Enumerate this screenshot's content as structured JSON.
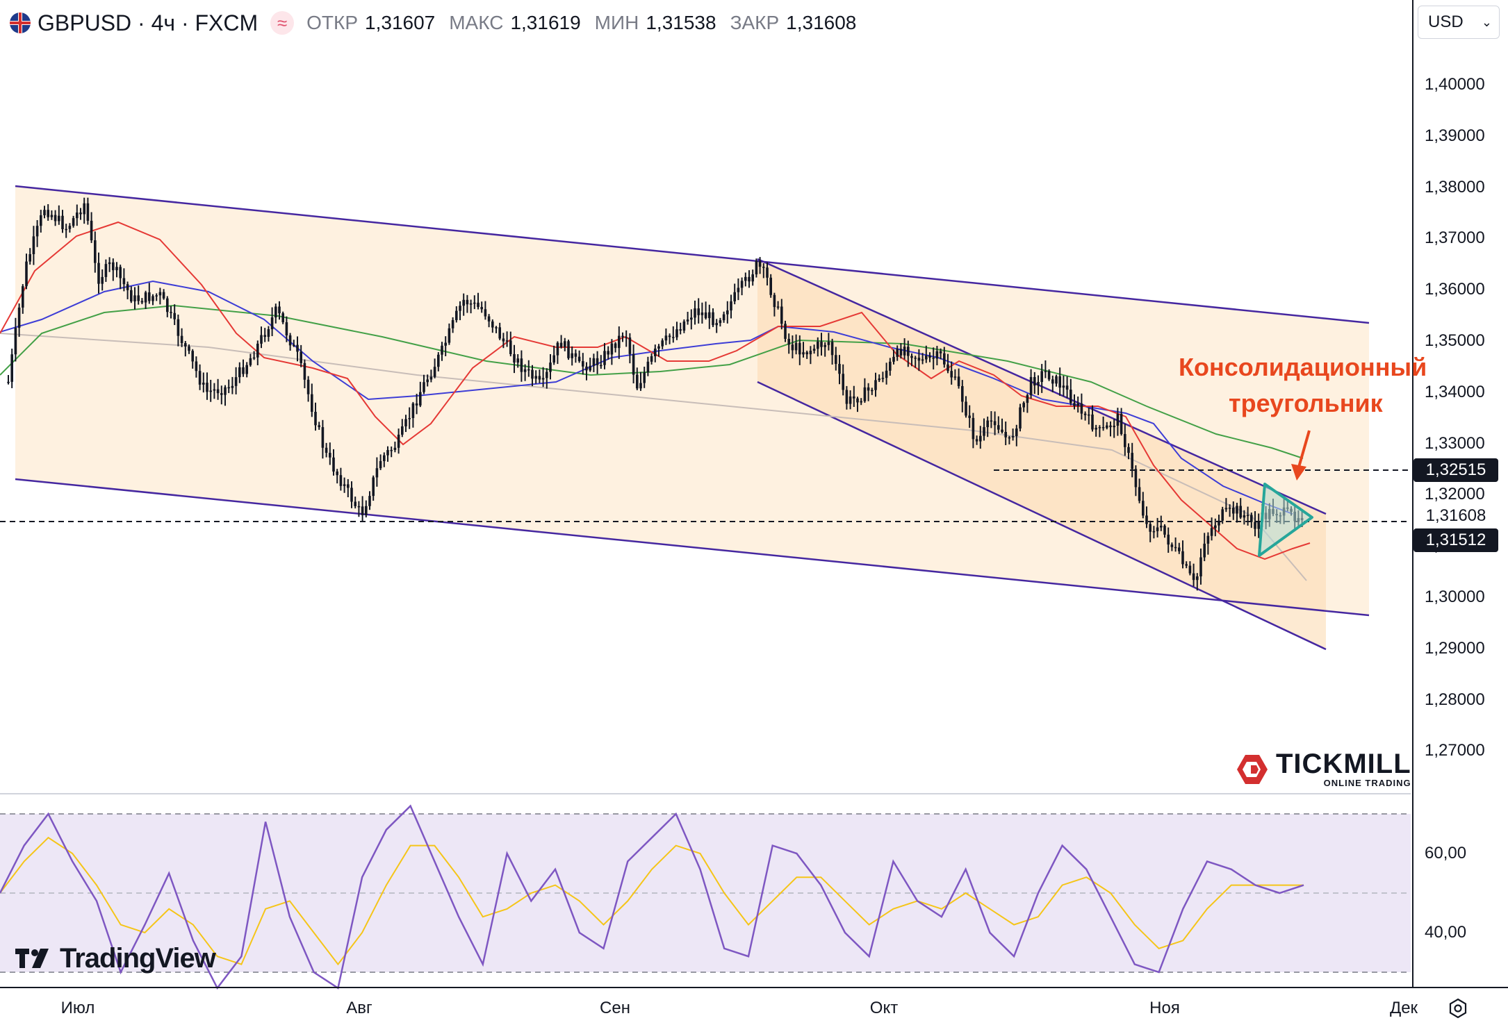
{
  "header": {
    "symbol": "GBPUSD · 4ч · FXCM",
    "open_label": "ОТКР",
    "open_value": "1,31607",
    "high_label": "МАКС",
    "high_value": "1,31619",
    "low_label": "МИН",
    "low_value": "1,31538",
    "close_label": "ЗАКР",
    "close_value": "1,31608",
    "currency": "USD"
  },
  "annotation": {
    "line1": "Консолидационный",
    "line2": "треугольник"
  },
  "price_labels": {
    "level_1": "1,32515",
    "current": "1,31608",
    "level_2": "1,31512"
  },
  "logos": {
    "tickmill": "TICKMILL",
    "tickmill_sub": "ONLINE TRADING",
    "tradingview": "TradingView"
  },
  "colors": {
    "candles": "#131722",
    "sma_red": "#e53935",
    "sma_blue": "#3d3dd6",
    "sma_green": "#43a047",
    "sma_gray": "#c8bdb8",
    "channel_fill": "#fdecd6",
    "channel_line": "#4527a0",
    "triangle": "#26a69a",
    "rsi_line": "#7e57c2",
    "rsi_signal": "#f5c518",
    "annotation": "#e8471e"
  },
  "chart_data": [
    {
      "type": "candlestick",
      "title": "GBPUSD · 4ч · FXCM",
      "x_labels": [
        "Июл",
        "Авг",
        "Сен",
        "Окт",
        "Ноя",
        "Дек"
      ],
      "y_ticks": [
        "1,40000",
        "1,39000",
        "1,38000",
        "1,37000",
        "1,36000",
        "1,35000",
        "1,34000",
        "1,33000",
        "1,32000",
        "1,31000",
        "1,30000",
        "1,29000",
        "1,28000",
        "1,27000"
      ],
      "ylim": [
        1.262,
        1.415
      ],
      "approx_close_path": [
        {
          "d": "Jun 30",
          "v": 1.342
        },
        {
          "d": "Jul 2",
          "v": 1.364
        },
        {
          "d": "Jul 4",
          "v": 1.376
        },
        {
          "d": "Jul 6",
          "v": 1.372
        },
        {
          "d": "Jul 8",
          "v": 1.377
        },
        {
          "d": "Jul 10",
          "v": 1.362
        },
        {
          "d": "Jul 12",
          "v": 1.365
        },
        {
          "d": "Jul 15",
          "v": 1.358
        },
        {
          "d": "Jul 17",
          "v": 1.359
        },
        {
          "d": "Jul 19",
          "v": 1.35
        },
        {
          "d": "Jul 22",
          "v": 1.34
        },
        {
          "d": "Jul 24",
          "v": 1.341
        },
        {
          "d": "Jul 26",
          "v": 1.347
        },
        {
          "d": "Jul 28",
          "v": 1.356
        },
        {
          "d": "Jul 30",
          "v": 1.347
        },
        {
          "d": "Aug 1",
          "v": 1.328
        },
        {
          "d": "Aug 3",
          "v": 1.316
        },
        {
          "d": "Aug 5",
          "v": 1.327
        },
        {
          "d": "Aug 8",
          "v": 1.33
        },
        {
          "d": "Aug 10",
          "v": 1.34
        },
        {
          "d": "Aug 12",
          "v": 1.348
        },
        {
          "d": "Aug 14",
          "v": 1.358
        },
        {
          "d": "Aug 16",
          "v": 1.356
        },
        {
          "d": "Aug 19",
          "v": 1.35
        },
        {
          "d": "Aug 21",
          "v": 1.345
        },
        {
          "d": "Aug 23",
          "v": 1.341
        },
        {
          "d": "Aug 25",
          "v": 1.35
        },
        {
          "d": "Aug 27",
          "v": 1.345
        },
        {
          "d": "Aug 30",
          "v": 1.346
        },
        {
          "d": "Sep 1",
          "v": 1.352
        },
        {
          "d": "Sep 3",
          "v": 1.341
        },
        {
          "d": "Sep 5",
          "v": 1.348
        },
        {
          "d": "Sep 8",
          "v": 1.352
        },
        {
          "d": "Sep 10",
          "v": 1.356
        },
        {
          "d": "Sep 12",
          "v": 1.354
        },
        {
          "d": "Sep 15",
          "v": 1.359
        },
        {
          "d": "Sep 17",
          "v": 1.365
        },
        {
          "d": "Sep 18",
          "v": 1.362
        },
        {
          "d": "Sep 20",
          "v": 1.349
        },
        {
          "d": "Sep 22",
          "v": 1.348
        },
        {
          "d": "Sep 24",
          "v": 1.35
        },
        {
          "d": "Sep 26",
          "v": 1.338
        },
        {
          "d": "Sep 28",
          "v": 1.34
        },
        {
          "d": "Sep 30",
          "v": 1.344
        },
        {
          "d": "Oct 2",
          "v": 1.349
        },
        {
          "d": "Oct 4",
          "v": 1.346
        },
        {
          "d": "Oct 6",
          "v": 1.347
        },
        {
          "d": "Oct 8",
          "v": 1.34
        },
        {
          "d": "Oct 10",
          "v": 1.33
        },
        {
          "d": "Oct 12",
          "v": 1.335
        },
        {
          "d": "Oct 14",
          "v": 1.33
        },
        {
          "d": "Oct 16",
          "v": 1.342
        },
        {
          "d": "Oct 18",
          "v": 1.344
        },
        {
          "d": "Oct 20",
          "v": 1.341
        },
        {
          "d": "Oct 22",
          "v": 1.336
        },
        {
          "d": "Oct 24",
          "v": 1.332
        },
        {
          "d": "Oct 26",
          "v": 1.335
        },
        {
          "d": "Oct 28",
          "v": 1.324
        },
        {
          "d": "Oct 30",
          "v": 1.314
        },
        {
          "d": "Nov 1",
          "v": 1.313
        },
        {
          "d": "Nov 3",
          "v": 1.308
        },
        {
          "d": "Nov 4",
          "v": 1.302
        },
        {
          "d": "Nov 6",
          "v": 1.311
        },
        {
          "d": "Nov 8",
          "v": 1.316
        },
        {
          "d": "Nov 10",
          "v": 1.317
        },
        {
          "d": "Nov 12",
          "v": 1.314
        },
        {
          "d": "Nov 14",
          "v": 1.317
        },
        {
          "d": "Nov 16",
          "v": 1.316
        },
        {
          "d": "Nov 17",
          "v": 1.31608
        }
      ],
      "sma_lines": [
        "red",
        "blue",
        "green",
        "gray"
      ],
      "grid": false
    },
    {
      "type": "line",
      "title": "RSI",
      "y_ticks": [
        "60,00",
        "40,00"
      ],
      "bands": [
        70,
        30
      ],
      "midline": 50,
      "series": [
        {
          "values": [
            50,
            62,
            70,
            58,
            48,
            30,
            42,
            55,
            38,
            26,
            34,
            68,
            44,
            30,
            26,
            54,
            66,
            72,
            58,
            44,
            32,
            60,
            48,
            56,
            40,
            36,
            58,
            64,
            70,
            56,
            36,
            34,
            62,
            60,
            52,
            40,
            34,
            58,
            48,
            44,
            56,
            40,
            34,
            50,
            62,
            56,
            44,
            32,
            30,
            46,
            58,
            56,
            52,
            50,
            52
          ]
        },
        {
          "values": [
            50,
            58,
            64,
            60,
            52,
            42,
            40,
            46,
            42,
            34,
            32,
            46,
            48,
            40,
            32,
            40,
            52,
            62,
            62,
            54,
            44,
            46,
            50,
            52,
            48,
            42,
            48,
            56,
            62,
            60,
            50,
            42,
            48,
            54,
            54,
            48,
            42,
            46,
            48,
            46,
            50,
            46,
            42,
            44,
            52,
            54,
            50,
            42,
            36,
            38,
            46,
            52,
            52,
            52,
            52
          ]
        }
      ]
    }
  ]
}
